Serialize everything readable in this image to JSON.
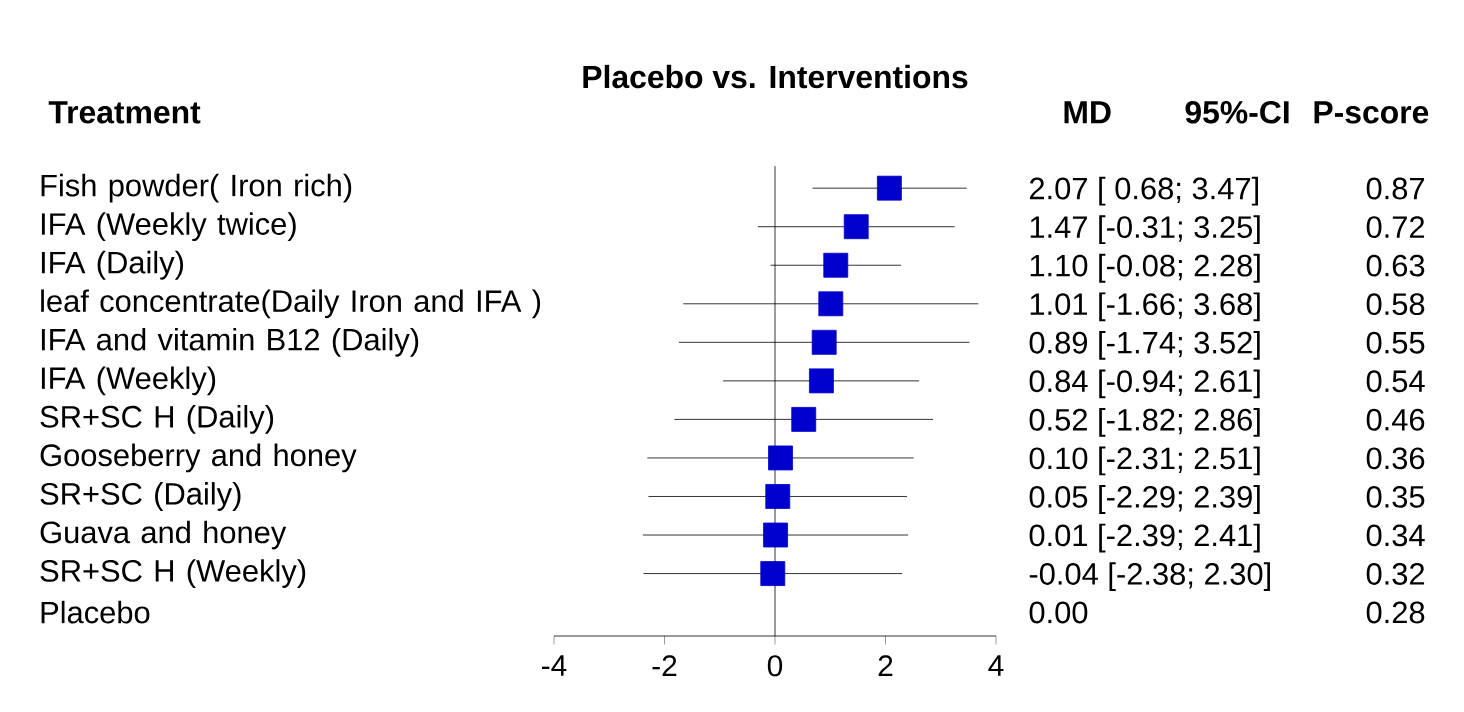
{
  "chart_data": {
    "type": "scatter",
    "orientation": "horizontal",
    "title": "Placebo vs. Interventions",
    "categories": [
      "Fish powder( Iron rich)",
      "IFA (Weekly twice)",
      "IFA (Daily)",
      "leaf concentrate(Daily Iron and IFA )",
      "IFA and vitamin B12 (Daily)",
      "IFA (Weekly)",
      "SR+SC H (Daily)",
      "Gooseberry and honey",
      "SR+SC (Daily)",
      "Guava and honey",
      "SR+SC H (Weekly)",
      "Placebo"
    ],
    "values": [
      2.07,
      1.47,
      1.1,
      1.01,
      0.89,
      0.84,
      0.52,
      0.1,
      0.05,
      0.01,
      -0.04,
      null
    ],
    "errors": [
      [
        0.68,
        3.47
      ],
      [
        -0.31,
        3.25
      ],
      [
        -0.08,
        2.28
      ],
      [
        -1.66,
        3.68
      ],
      [
        -1.74,
        3.52
      ],
      [
        -0.94,
        2.61
      ],
      [
        -1.82,
        2.86
      ],
      [
        -2.31,
        2.51
      ],
      [
        -2.29,
        2.39
      ],
      [
        -2.39,
        2.41
      ],
      [
        -2.38,
        2.3
      ],
      null
    ],
    "value_labels": [
      "2.07 [ 0.68; 3.47]",
      "1.47 [-0.31; 3.25]",
      "1.10 [-0.08; 2.28]",
      "1.01 [-1.66; 3.68]",
      "0.89 [-1.74; 3.52]",
      "0.84 [-0.94; 2.61]",
      "0.52 [-1.82; 2.86]",
      "0.10 [-2.31; 2.51]",
      "0.05 [-2.29; 2.39]",
      "0.01 [-2.39; 2.41]",
      "-0.04 [-2.38; 2.30]",
      "0.00"
    ],
    "annotations": [
      "Treatment",
      "MD",
      "95%-CI",
      "P-score",
      "0.87",
      "0.72",
      "0.63",
      "0.58",
      "0.55",
      "0.54",
      "0.46",
      "0.36",
      "0.35",
      "0.34",
      "0.32",
      "0.28"
    ],
    "color": "#0000cc",
    "marker": "square",
    "xlim": [
      -4,
      4
    ],
    "xticks": [
      -4,
      -2,
      0,
      2,
      4
    ],
    "ref_lines": [
      {
        "axis": "x",
        "value": 0
      }
    ],
    "grid": false
  }
}
